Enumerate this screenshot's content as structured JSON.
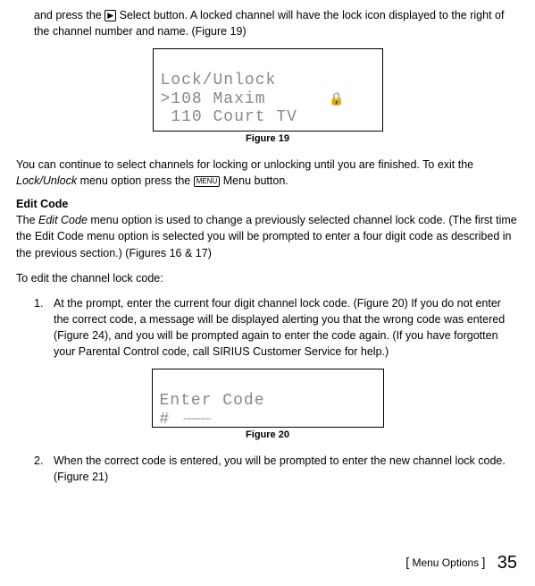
{
  "intro": {
    "line1_prefix": "and press the ",
    "select_icon_alt": "Select",
    "line1_mid": " Select button. A locked channel will have the lock icon displayed to the right of the channel number and name. (Figure 19)"
  },
  "lcd19": {
    "row1": "Lock/Unlock",
    "row2_left": ">108 Maxim",
    "row2_lock": "🔒",
    "row3": " 110 Court TV",
    "caption": "Figure 19"
  },
  "para2_prefix": "You can continue to select channels for locking or unlocking until you are finished. To exit the ",
  "para2_italic": "Lock/Unlock",
  "para2_mid": " menu option press the ",
  "menu_label": "MENU",
  "para2_suffix": " Menu button.",
  "editcode": {
    "heading": "Edit Code",
    "para_prefix": "The ",
    "para_italic": "Edit Code",
    "para_rest": " menu option is used to change a previously selected channel lock code. (The first time the Edit Code menu option is selected you will be prompted to enter a four digit code as described in the previous section.) (Figures 16 & 17)",
    "lead": "To edit the channel lock code:",
    "step1": "At the prompt, enter the current four digit channel lock code. (Figure 20) If you do not enter the correct code, a message will be displayed alerting you that the wrong code was entered (Figure 24), and you will be prompted again to enter the code again. (If you have forgotten your Parental Control code, call SIRIUS Customer Service for help.)",
    "step2": "When the correct code is entered, you will be prompted to enter the new channel lock code. (Figure 21)"
  },
  "lcd20": {
    "row1": "Enter Code",
    "row2_sym": "#",
    "row2_dots": " ____",
    "caption": "Figure 20"
  },
  "footer": {
    "section": "Menu Options",
    "page": "35"
  }
}
